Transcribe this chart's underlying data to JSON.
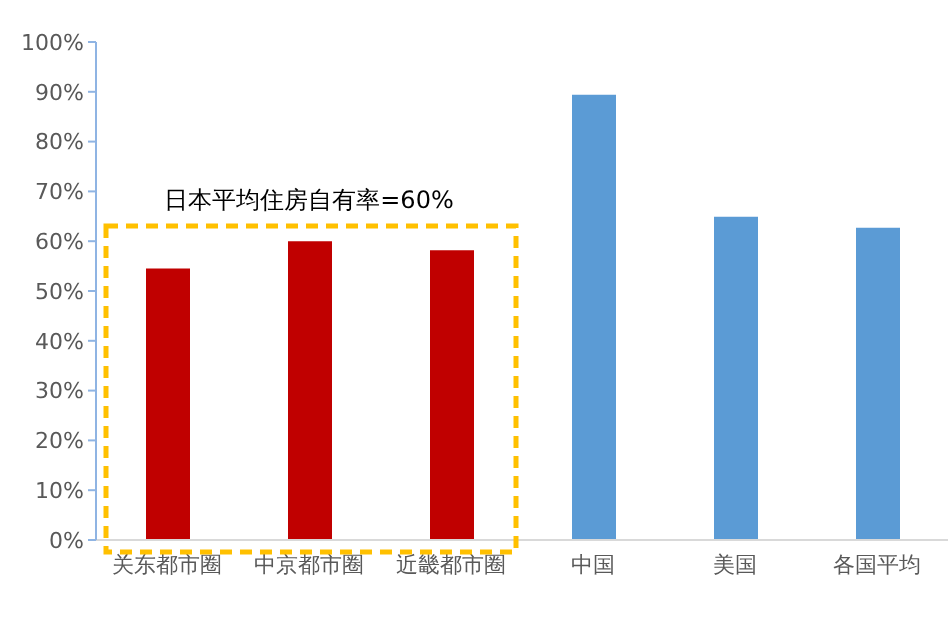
{
  "chart_data": {
    "type": "bar",
    "categories": [
      "关东都市圈",
      "中京都市圈",
      "近畿都市圈",
      "中国",
      "美国",
      "各国平均"
    ],
    "values": [
      54.5,
      60,
      58.2,
      89.4,
      64.9,
      62.7
    ],
    "colors": [
      "#c00000",
      "#c00000",
      "#c00000",
      "#5b9bd5",
      "#5b9bd5",
      "#5b9bd5"
    ],
    "ylim": [
      0,
      100
    ],
    "yticks": [
      {
        "value": 0,
        "label": "0%"
      },
      {
        "value": 10,
        "label": "10%"
      },
      {
        "value": 20,
        "label": "20%"
      },
      {
        "value": 30,
        "label": "30%"
      },
      {
        "value": 40,
        "label": "40%"
      },
      {
        "value": 50,
        "label": "50%"
      },
      {
        "value": 60,
        "label": "60%"
      },
      {
        "value": 70,
        "label": "70%"
      },
      {
        "value": 80,
        "label": "80%"
      },
      {
        "value": 90,
        "label": "90%"
      },
      {
        "value": 100,
        "label": "100%"
      }
    ],
    "annotations": [
      "日本平均住房自有率=60%"
    ],
    "grid": false,
    "legend": false
  }
}
